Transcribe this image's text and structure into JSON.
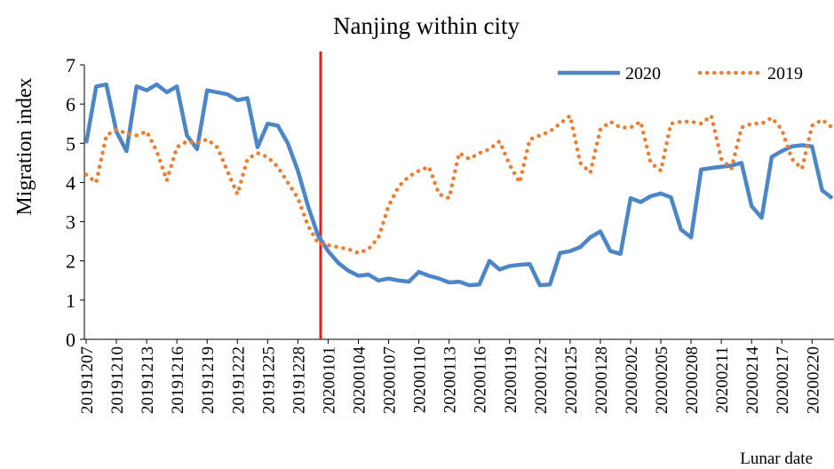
{
  "chart_data": {
    "type": "line",
    "title": "Nanjing within city",
    "x_label": "Lunar date",
    "y_label": "Migration index",
    "categories": [
      "20191207",
      null,
      null,
      "20191210",
      null,
      null,
      "20191213",
      null,
      null,
      "20191216",
      null,
      null,
      "20191219",
      null,
      null,
      "20191222",
      null,
      null,
      "20191225",
      null,
      null,
      "20191228",
      null,
      null,
      "20200101",
      null,
      null,
      "20200104",
      null,
      null,
      "20200107",
      null,
      null,
      "20200110",
      null,
      null,
      "20200113",
      null,
      null,
      "20200116",
      null,
      null,
      "20200119",
      null,
      null,
      "20200122",
      null,
      null,
      "20200125",
      null,
      null,
      "20200128",
      null,
      null,
      "20200202",
      null,
      null,
      "20200205",
      null,
      null,
      "20200208",
      null,
      null,
      "20200211",
      null,
      null,
      "20200214",
      null,
      null,
      "20200217",
      null,
      null,
      "20200220",
      null,
      null
    ],
    "series": [
      {
        "name": "2020",
        "color": "#4a86c8",
        "style": "solid",
        "values": [
          5.0,
          6.45,
          6.5,
          5.3,
          4.8,
          6.45,
          6.35,
          6.5,
          6.3,
          6.45,
          5.2,
          4.85,
          6.35,
          6.3,
          6.25,
          6.1,
          6.15,
          4.9,
          5.5,
          5.45,
          5.0,
          4.3,
          3.4,
          2.65,
          2.25,
          1.95,
          1.75,
          1.62,
          1.65,
          1.5,
          1.55,
          1.5,
          1.47,
          1.72,
          1.62,
          1.55,
          1.45,
          1.47,
          1.38,
          1.4,
          2.0,
          1.78,
          1.87,
          1.9,
          1.92,
          1.38,
          1.4,
          2.2,
          2.25,
          2.35,
          2.6,
          2.75,
          2.25,
          2.18,
          3.6,
          3.5,
          3.65,
          3.72,
          3.62,
          2.8,
          2.6,
          4.33,
          4.37,
          4.4,
          4.43,
          4.5,
          3.4,
          3.1,
          4.65,
          4.8,
          4.92,
          4.95,
          4.92,
          3.8,
          3.6
        ]
      },
      {
        "name": "2019",
        "color": "#ed7d31",
        "style": "dotted",
        "values": [
          4.2,
          4.0,
          5.2,
          5.35,
          5.25,
          5.2,
          5.3,
          4.8,
          4.05,
          4.9,
          5.05,
          5.0,
          5.1,
          4.9,
          4.3,
          3.7,
          4.6,
          4.75,
          4.65,
          4.4,
          4.0,
          3.6,
          2.9,
          2.45,
          2.4,
          2.35,
          2.3,
          2.2,
          2.3,
          2.6,
          3.4,
          3.9,
          4.15,
          4.3,
          4.4,
          3.7,
          3.6,
          4.75,
          4.6,
          4.75,
          4.85,
          5.05,
          4.45,
          4.0,
          5.1,
          5.2,
          5.3,
          5.5,
          5.7,
          4.5,
          4.25,
          5.35,
          5.55,
          5.4,
          5.4,
          5.55,
          4.5,
          4.3,
          5.5,
          5.55,
          5.55,
          5.5,
          5.7,
          4.6,
          4.35,
          5.4,
          5.5,
          5.5,
          5.65,
          5.35,
          4.6,
          4.35,
          5.45,
          5.6,
          5.4
        ]
      }
    ],
    "ylim": [
      0,
      7
    ],
    "yticks": [
      0,
      1,
      2,
      3,
      4,
      5,
      6,
      7
    ],
    "grid": false,
    "legend": "upper right"
  }
}
